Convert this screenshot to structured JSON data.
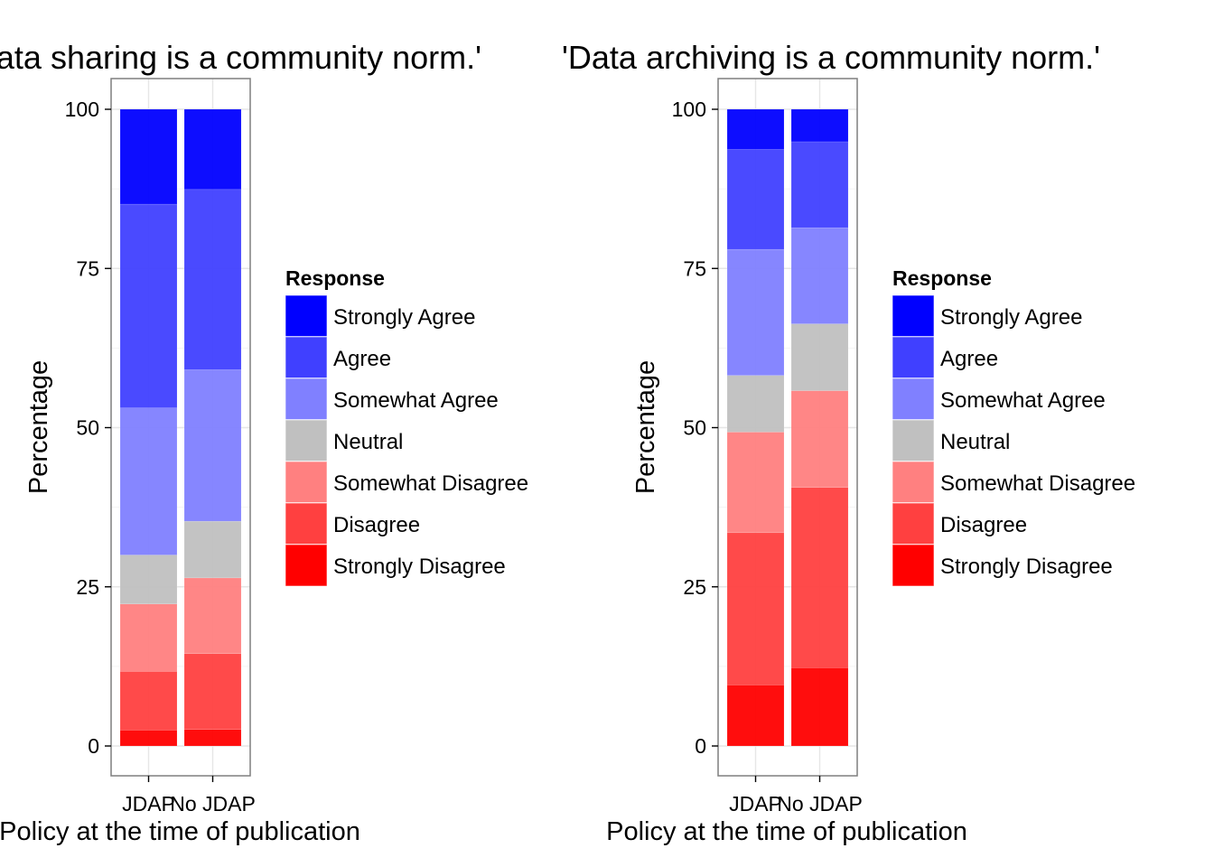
{
  "chart_data": [
    {
      "type": "bar",
      "stacked": true,
      "title": "'Data sharing is a community norm.'",
      "xlabel": "Policy at the time of publication",
      "ylabel": "Percentage",
      "ylim": [
        0,
        100
      ],
      "yticks": [
        "0",
        "25",
        "50",
        "75",
        "100"
      ],
      "categories": [
        "JDAP",
        "No JDAP"
      ],
      "grid": true,
      "legend_title": "Response",
      "legend_position": "right",
      "series": [
        {
          "name": "Strongly Disagree",
          "color": "#ff0000",
          "values": [
            2.5,
            2.6
          ]
        },
        {
          "name": "Disagree",
          "color": "#ff4040",
          "values": [
            9.2,
            11.9
          ]
        },
        {
          "name": "Somewhat Disagree",
          "color": "#ff8080",
          "values": [
            10.6,
            11.9
          ]
        },
        {
          "name": "Neutral",
          "color": "#c0c0c0",
          "values": [
            7.7,
            8.9
          ]
        },
        {
          "name": "Somewhat Agree",
          "color": "#8080ff",
          "values": [
            23.1,
            23.8
          ]
        },
        {
          "name": "Agree",
          "color": "#4040ff",
          "values": [
            32.0,
            28.3
          ]
        },
        {
          "name": "Strongly Agree",
          "color": "#0000ff",
          "values": [
            14.9,
            12.6
          ]
        }
      ]
    },
    {
      "type": "bar",
      "stacked": true,
      "title": "'Data archiving is a community norm.'",
      "xlabel": "Policy at the time of publication",
      "ylabel": "Percentage",
      "ylim": [
        0,
        100
      ],
      "yticks": [
        "0",
        "25",
        "50",
        "75",
        "100"
      ],
      "categories": [
        "JDAP",
        "No JDAP"
      ],
      "grid": true,
      "legend_title": "Response",
      "legend_position": "right",
      "series": [
        {
          "name": "Strongly Disagree",
          "color": "#ff0000",
          "values": [
            9.6,
            12.3
          ]
        },
        {
          "name": "Disagree",
          "color": "#ff4040",
          "values": [
            23.9,
            28.3
          ]
        },
        {
          "name": "Somewhat Disagree",
          "color": "#ff8080",
          "values": [
            15.8,
            15.2
          ]
        },
        {
          "name": "Neutral",
          "color": "#c0c0c0",
          "values": [
            8.9,
            10.5
          ]
        },
        {
          "name": "Somewhat Agree",
          "color": "#8080ff",
          "values": [
            19.8,
            15.1
          ]
        },
        {
          "name": "Agree",
          "color": "#4040ff",
          "values": [
            15.7,
            13.5
          ]
        },
        {
          "name": "Strongly Agree",
          "color": "#0000ff",
          "values": [
            6.3,
            5.1
          ]
        }
      ]
    }
  ]
}
